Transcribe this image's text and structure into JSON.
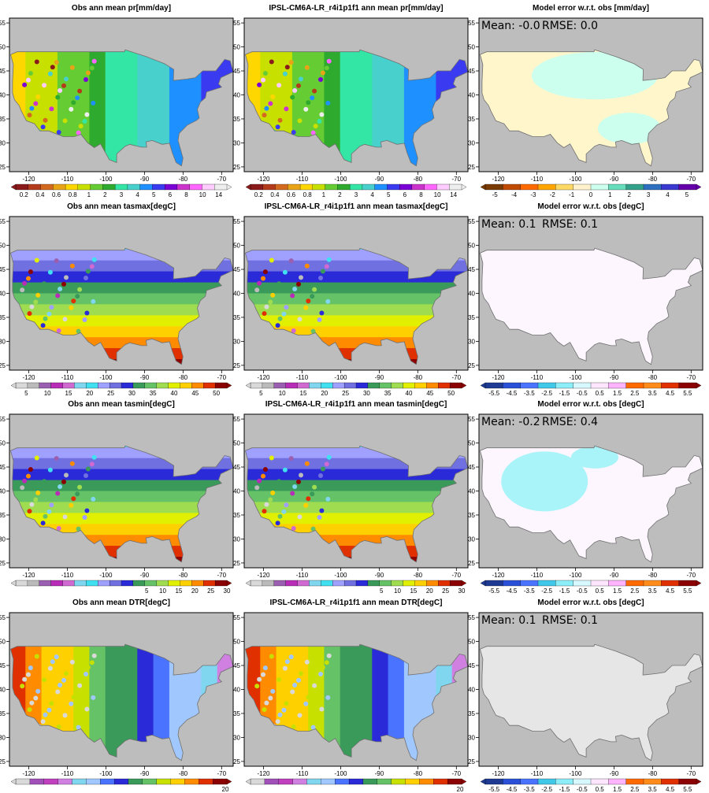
{
  "figure": {
    "rows": [
      {
        "variable": "pr",
        "titles": [
          "Obs  ann mean pr[mm/day]",
          "IPSL-CM6A-LR_r4i1p1f1 ann mean pr[mm/day]",
          "Model error w.r.t. obs [mm/day]"
        ],
        "stats": {
          "mean": "Mean: -0.0",
          "rmse": "RMSE: 0.0"
        },
        "field_colorbar": {
          "colors": [
            "#8b1a1a",
            "#b33b1c",
            "#d2691e",
            "#e8a317",
            "#ffd700",
            "#c8e000",
            "#66cc33",
            "#2eaa2e",
            "#33e6a6",
            "#48d1cc",
            "#1e90ff",
            "#3a3af0",
            "#7b00d6",
            "#cc33cc",
            "#ff66ff",
            "#ffccff",
            "#eeeeee"
          ],
          "labels": [
            "0.2",
            "0.4",
            "0.6",
            "0.8",
            "1",
            "2",
            "3",
            "4",
            "5",
            "6",
            "8",
            "10",
            "14"
          ]
        },
        "diff_colorbar": {
          "colors": [
            "#7a3b00",
            "#c04a00",
            "#ff6a00",
            "#ffa500",
            "#ffd966",
            "#fff2cc",
            "#ccffee",
            "#66ddbb",
            "#33a08a",
            "#2f6fbf",
            "#3a3ad0",
            "#6600aa"
          ],
          "labels": [
            "-5",
            "-4",
            "-3",
            "-2",
            "-1",
            "0",
            "1",
            "2",
            "3",
            "4",
            "5"
          ]
        }
      },
      {
        "variable": "tasmax",
        "titles": [
          "Obs  ann mean tasmax[degC]",
          "IPSL-CM6A-LR_r4i1p1f1 ann mean tasmax[degC]",
          "Model error w.r.t. obs [degC]"
        ],
        "stats": {
          "mean": "Mean: 0.1",
          "rmse": "RMSE: 0.1"
        },
        "field_colorbar": {
          "colors": [
            "#d9d9d9",
            "#bbbbbb",
            "#9a5fb0",
            "#b82cb8",
            "#d06ad0",
            "#7fd6ee",
            "#40e0f0",
            "#a0a0ff",
            "#7070e0",
            "#2a2ad8",
            "#3a9a5a",
            "#66c266",
            "#a0dc50",
            "#e0f000",
            "#ffd000",
            "#ff8c00",
            "#e03000",
            "#8b0000"
          ],
          "labels": [
            "5",
            "10",
            "15",
            "20",
            "25",
            "30",
            "35",
            "40",
            "45",
            "50"
          ]
        },
        "diff_colorbar": {
          "colors": [
            "#1f3a93",
            "#2b50d8",
            "#4a74ff",
            "#40c8e8",
            "#8ceef8",
            "#d8f8ff",
            "#ffe6ff",
            "#ffb4ff",
            "#ff6a00",
            "#ff8c1a",
            "#e03000",
            "#8b0000"
          ],
          "labels": [
            "-5.5",
            "-4.5",
            "-3.5",
            "-2.5",
            "-1.5",
            "-0.5",
            "0.5",
            "1.5",
            "2.5",
            "3.5",
            "4.5",
            "5.5"
          ]
        }
      },
      {
        "variable": "tasmin",
        "titles": [
          "Obs  ann mean tasmin[degC]",
          "IPSL-CM6A-LR_r4i1p1f1 ann mean tasmin[degC]",
          "Model error w.r.t. obs [degC]"
        ],
        "stats": {
          "mean": "Mean: -0.2",
          "rmse": "RMSE: 0.4"
        },
        "field_colorbar": {
          "colors": [
            "#d9d9d9",
            "#bbbbbb",
            "#9a5fb0",
            "#b82cb8",
            "#d06ad0",
            "#7fd6ee",
            "#40e0f0",
            "#a0a0ff",
            "#7070e0",
            "#2a2ad8",
            "#3a9a5a",
            "#66c266",
            "#a0dc50",
            "#e0f000",
            "#ffd000",
            "#ff8c00",
            "#e03000",
            "#8b0000"
          ],
          "labels": [
            "5",
            "10",
            "15",
            "20",
            "25",
            "30"
          ]
        },
        "diff_colorbar": {
          "colors": [
            "#1f3a93",
            "#2b50d8",
            "#4a74ff",
            "#40c8e8",
            "#8ceef8",
            "#d8f8ff",
            "#ffe6ff",
            "#ffb4ff",
            "#ff6a00",
            "#ff8c1a",
            "#e03000",
            "#8b0000"
          ],
          "labels": [
            "-5.5",
            "-4.5",
            "-3.5",
            "-2.5",
            "-1.5",
            "-0.5",
            "0.5",
            "1.5",
            "2.5",
            "3.5",
            "4.5",
            "5.5"
          ]
        }
      },
      {
        "variable": "DTR",
        "titles": [
          "Obs  ann mean DTR[degC]",
          "IPSL-CM6A-LR_r4i1p1f1 ann mean DTR[degC]",
          "Model error w.r.t. obs [degC]"
        ],
        "stats": {
          "mean": "Mean: 0.1",
          "rmse": "RMSE: 0.1"
        },
        "field_colorbar": {
          "colors": [
            "#d9d9d9",
            "#a050b8",
            "#c040c0",
            "#d080e0",
            "#7fd6ee",
            "#a0c8ff",
            "#4a74ff",
            "#2a2ad8",
            "#3a9a5a",
            "#66c266",
            "#c8e000",
            "#ffd000",
            "#ff8c00",
            "#e03000",
            "#8b0000"
          ],
          "labels": [
            "20"
          ]
        },
        "diff_colorbar": {
          "colors": [
            "#1f3a93",
            "#2b50d8",
            "#4a74ff",
            "#40c8e8",
            "#8ceef8",
            "#d8f8ff",
            "#ffe6ff",
            "#ffb4ff",
            "#ff6a00",
            "#ff8c1a",
            "#e03000",
            "#8b0000"
          ],
          "labels": [
            "-5.5",
            "-4.5",
            "-3.5",
            "-2.5",
            "-1.5",
            "-0.5",
            "0.5",
            "1.5",
            "2.5",
            "3.5",
            "4.5",
            "5.5"
          ]
        }
      }
    ]
  },
  "chart_data": {
    "type": "heatmap",
    "layout": "4 rows x 3 columns of US maps (obs, model, model minus obs)",
    "x_axis": {
      "label": "",
      "ticks": [
        -120,
        -110,
        -100,
        -90,
        -80,
        -70
      ],
      "range": [
        -125,
        -67
      ]
    },
    "y_axis": {
      "label": "",
      "ticks": [
        25,
        30,
        35,
        40,
        45,
        50,
        55
      ],
      "range": [
        24,
        56
      ]
    },
    "panels": [
      {
        "title": "Obs  ann mean pr[mm/day]",
        "units": "mm/day"
      },
      {
        "title": "IPSL-CM6A-LR_r4i1p1f1 ann mean pr[mm/day]",
        "units": "mm/day"
      },
      {
        "title": "Model error w.r.t. obs [mm/day]",
        "mean": -0.0,
        "rmse": 0.0
      },
      {
        "title": "Obs  ann mean tasmax[degC]",
        "units": "degC"
      },
      {
        "title": "IPSL-CM6A-LR_r4i1p1f1 ann mean tasmax[degC]",
        "units": "degC"
      },
      {
        "title": "Model error w.r.t. obs [degC]",
        "mean": 0.1,
        "rmse": 0.1
      },
      {
        "title": "Obs  ann mean tasmin[degC]",
        "units": "degC"
      },
      {
        "title": "IPSL-CM6A-LR_r4i1p1f1 ann mean tasmin[degC]",
        "units": "degC"
      },
      {
        "title": "Model error w.r.t. obs [degC]",
        "mean": -0.2,
        "rmse": 0.4
      },
      {
        "title": "Obs  ann mean DTR[degC]",
        "units": "degC"
      },
      {
        "title": "IPSL-CM6A-LR_r4i1p1f1 ann mean DTR[degC]",
        "units": "degC"
      },
      {
        "title": "Model error w.r.t. obs [degC]",
        "mean": 0.1,
        "rmse": 0.1
      }
    ]
  }
}
